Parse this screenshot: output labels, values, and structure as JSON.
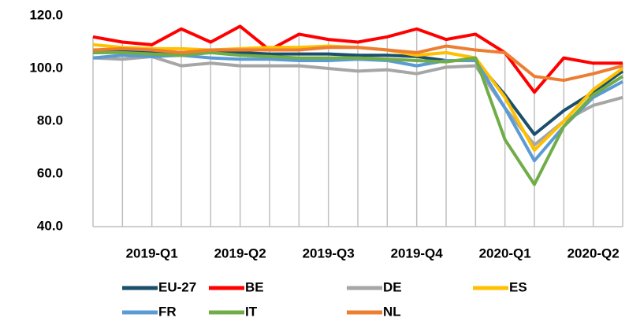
{
  "chart_data": {
    "type": "line",
    "categories": [
      null,
      null,
      "2019-Q1",
      null,
      null,
      "2019-Q2",
      null,
      null,
      "2019-Q3",
      null,
      null,
      "2019-Q4",
      null,
      null,
      "2020-Q1",
      null,
      null,
      "2020-Q2",
      null
    ],
    "ylim": [
      40,
      120
    ],
    "yticks": [
      {
        "value": 40,
        "label": "40.0"
      },
      {
        "value": 60,
        "label": "60.0"
      },
      {
        "value": 80,
        "label": "80.0"
      },
      {
        "value": 100,
        "label": "100.0"
      },
      {
        "value": 120,
        "label": "120.0"
      }
    ],
    "legend": "bottom",
    "series": [
      {
        "name": "EU-27",
        "color": "#1b4f6b",
        "values": [
          106,
          106.5,
          106,
          106,
          106,
          106,
          105.5,
          105.5,
          105.5,
          105,
          105,
          104.5,
          103,
          103,
          90,
          75,
          84,
          91,
          99
        ]
      },
      {
        "name": "BE",
        "color": "#ff0000",
        "values": [
          112,
          110,
          109,
          115,
          110,
          116,
          107,
          113,
          111,
          110,
          112,
          115,
          111,
          113,
          106,
          91,
          104,
          102,
          102
        ]
      },
      {
        "name": "DE",
        "color": "#a6a6a6",
        "values": [
          104,
          103.5,
          104.5,
          101,
          102,
          101,
          101,
          101,
          100,
          99,
          99.5,
          98,
          100.5,
          101,
          85,
          71,
          80,
          86,
          89
        ]
      },
      {
        "name": "ES",
        "color": "#ffc000",
        "values": [
          109,
          108,
          107.5,
          107.5,
          107,
          107.5,
          108,
          108,
          108.5,
          108,
          107,
          105,
          106,
          104,
          89,
          69,
          80,
          92,
          100
        ]
      },
      {
        "name": "FR",
        "color": "#5b9bd5",
        "values": [
          104,
          105,
          104.5,
          105,
          104,
          103.5,
          103.5,
          103,
          103,
          103.5,
          103,
          101,
          103,
          103,
          85,
          65,
          78,
          89,
          95
        ]
      },
      {
        "name": "IT",
        "color": "#70ad47",
        "values": [
          106,
          106,
          105.5,
          105,
          106,
          105,
          104.5,
          104,
          104,
          104,
          103.5,
          103,
          102.5,
          104,
          73,
          56,
          78,
          90,
          97
        ]
      },
      {
        "name": "NL",
        "color": "#ed7d31",
        "values": [
          107,
          107.5,
          107,
          106,
          107,
          107,
          107,
          107,
          108,
          108,
          107,
          106,
          108.5,
          107,
          106,
          97,
          95.5,
          98,
          101
        ]
      }
    ]
  }
}
